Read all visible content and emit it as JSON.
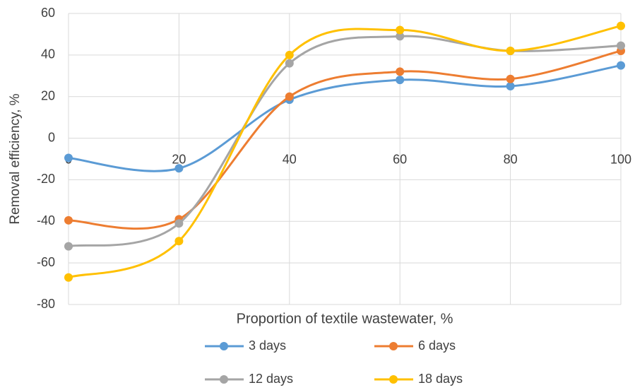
{
  "chart_data": {
    "type": "line",
    "x_label": "Proportion of textile wastewater, %",
    "y_label": "Removal efficiency, %",
    "x": [
      0,
      20,
      40,
      60,
      80,
      100
    ],
    "xlim": [
      0,
      100
    ],
    "xticks": [
      0,
      20,
      40,
      60,
      80,
      100
    ],
    "ylim": [
      -80,
      60
    ],
    "yticks": [
      -80,
      -60,
      -40,
      -20,
      0,
      20,
      40,
      60
    ],
    "grid": true,
    "smooth": true,
    "legend": "bottom",
    "series": [
      {
        "name": "3 days",
        "color": "#5b9bd5",
        "values": [
          -9.5,
          -14.5,
          18.5,
          28,
          25,
          35
        ]
      },
      {
        "name": "6 days",
        "color": "#ed7d31",
        "values": [
          -39.5,
          -39,
          20,
          32,
          28.5,
          42
        ]
      },
      {
        "name": "12 days",
        "color": "#a5a5a5",
        "values": [
          -52,
          -41,
          36,
          49,
          42,
          44.5
        ]
      },
      {
        "name": "18 days",
        "color": "#ffc000",
        "values": [
          -67,
          -49.5,
          40,
          52,
          42,
          54
        ]
      }
    ]
  }
}
